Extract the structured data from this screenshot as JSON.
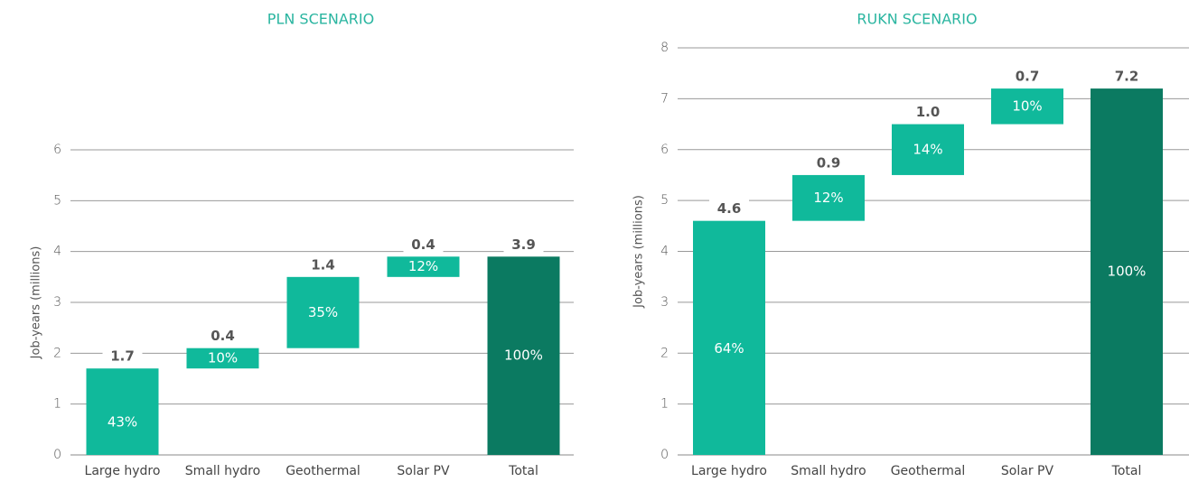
{
  "chart_data": [
    {
      "type": "waterfall",
      "title": "PLN SCENARIO",
      "y_label": "Job-years (millions)",
      "categories": [
        "Large hydro",
        "Small hydro",
        "Geothermal",
        "Solar PV",
        "Total"
      ],
      "values": [
        1.7,
        0.4,
        1.4,
        0.4,
        3.9
      ],
      "share_labels": [
        "43%",
        "10%",
        "35%",
        "12%",
        "100%"
      ],
      "colors": [
        "#10b99b",
        "#10b99b",
        "#10b99b",
        "#10b99b",
        "#0b7a61"
      ],
      "ylim": [
        0,
        6
      ],
      "yticks": [
        0,
        1,
        2,
        3,
        4,
        5,
        6
      ],
      "grid": true
    },
    {
      "type": "waterfall",
      "title": "RUKN SCENARIO",
      "y_label": "Job-years (millions)",
      "categories": [
        "Large hydro",
        "Small hydro",
        "Geothermal",
        "Solar PV",
        "Total"
      ],
      "values": [
        4.6,
        0.9,
        1.0,
        0.7,
        7.2
      ],
      "value_labels": [
        "4.6",
        "0.9",
        "1.0",
        "0.7",
        "7.2"
      ],
      "share_labels": [
        "64%",
        "12%",
        "14%",
        "10%",
        "100%"
      ],
      "colors": [
        "#10b99b",
        "#10b99b",
        "#10b99b",
        "#10b99b",
        "#0b7a61"
      ],
      "ylim": [
        0,
        8
      ],
      "yticks": [
        0,
        1,
        2,
        3,
        4,
        5,
        6,
        7,
        8
      ],
      "grid": true
    }
  ]
}
